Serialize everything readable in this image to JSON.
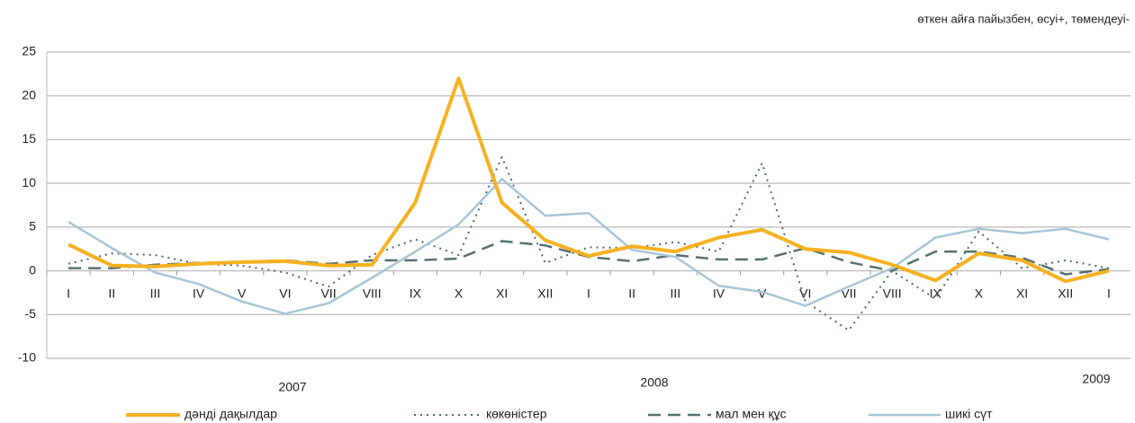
{
  "chart_data": {
    "type": "line",
    "subtitle": "өткен айға пайызбен, өсуі+, төмендеуі-",
    "categories": [
      "I",
      "II",
      "III",
      "IV",
      "V",
      "VI",
      "VII",
      "VIII",
      "IX",
      "X",
      "XI",
      "XII",
      "I",
      "II",
      "III",
      "IV",
      "V",
      "VI",
      "VII",
      "VIII",
      "IX",
      "X",
      "XI",
      "XII",
      "I"
    ],
    "year_labels": [
      "2007",
      "2008",
      "2009"
    ],
    "ylim": [
      -10,
      25
    ],
    "yticks": [
      -10,
      -5,
      0,
      5,
      10,
      15,
      20,
      25
    ],
    "grid": true,
    "legend": "bottom",
    "series": [
      {
        "name": "дәнді дақылдар",
        "color": "#f5b120",
        "style": "solid",
        "width": 4,
        "values": [
          3,
          0.6,
          0.5,
          0.8,
          1.0,
          1.1,
          0.6,
          0.7,
          7.8,
          22,
          7.8,
          3.5,
          1.7,
          2.8,
          2.2,
          3.8,
          4.7,
          2.5,
          2.1,
          0.7,
          -1.1,
          2.0,
          1.2,
          -1.2,
          0
        ]
      },
      {
        "name": "көкөністер",
        "color": "#4d6b6b",
        "style": "dotted",
        "width": 2,
        "values": [
          0.8,
          2.0,
          1.8,
          0.8,
          0.6,
          -0.2,
          -1.8,
          1.8,
          3.6,
          1.8,
          13.0,
          0.9,
          2.7,
          2.6,
          3.3,
          2.2,
          12.3,
          -3.5,
          -6.8,
          0,
          -3.2,
          4.5,
          0.3,
          1.2,
          0.3
        ]
      },
      {
        "name": "мал мен құс",
        "color": "#56706f",
        "style": "dashed",
        "width": 2.5,
        "values": [
          0.3,
          0.3,
          0.7,
          0.9,
          1.0,
          1.2,
          0.8,
          1.2,
          1.2,
          1.4,
          3.4,
          2.9,
          1.6,
          1.1,
          1.8,
          1.3,
          1.3,
          2.6,
          1.0,
          0,
          2.2,
          2.2,
          1.5,
          -0.4,
          0.2
        ]
      },
      {
        "name": "шикі сүт",
        "color": "#a9c5d6",
        "style": "solid",
        "width": 2.5,
        "values": [
          5.6,
          2.6,
          -0.2,
          -1.5,
          -3.5,
          -4.9,
          -3.7,
          -0.8,
          2.2,
          5.3,
          10.5,
          6.3,
          6.6,
          2.4,
          1.6,
          -1.7,
          -2.4,
          -4.0,
          -1.8,
          0.3,
          3.8,
          4.8,
          4.3,
          4.8,
          3.6
        ]
      }
    ]
  }
}
